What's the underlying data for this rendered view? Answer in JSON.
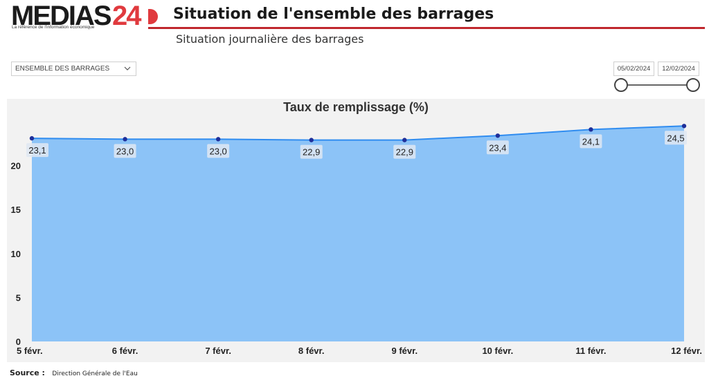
{
  "header": {
    "logo_word": "MEDIAS",
    "logo_number": "24",
    "logo_tagline": "La référence de l'information économique",
    "title": "Situation de l'ensemble des barrages",
    "subtitle": "Situation journalière des barrages"
  },
  "filters": {
    "dropdown_value": "ENSEMBLE DES BARRAGES",
    "date_start": "05/02/2024",
    "date_end": "12/02/2024"
  },
  "colors": {
    "brand_red": "#c0272d",
    "area_fill": "#8cc3f7",
    "line": "#2f8cf0",
    "marker": "#1f2f9a"
  },
  "chart_data": {
    "type": "area",
    "title": "Taux de remplissage (%)",
    "categories": [
      "5 févr.",
      "6 févr.",
      "7 févr.",
      "8 févr.",
      "9 févr.",
      "10 févr.",
      "11 févr.",
      "12 févr."
    ],
    "values": [
      23.1,
      23.0,
      23.0,
      22.9,
      22.9,
      23.4,
      24.1,
      24.5
    ],
    "value_labels": [
      "23,1",
      "23,0",
      "23,0",
      "22,9",
      "22,9",
      "23,4",
      "24,1",
      "24,5"
    ],
    "y_ticks": [
      0,
      5,
      10,
      15,
      20
    ],
    "ylim": [
      0,
      25.7
    ],
    "grid": "horizontal-dotted"
  },
  "footer": {
    "source_label": "Source :",
    "source_value": "Direction Générale de l'Eau"
  }
}
